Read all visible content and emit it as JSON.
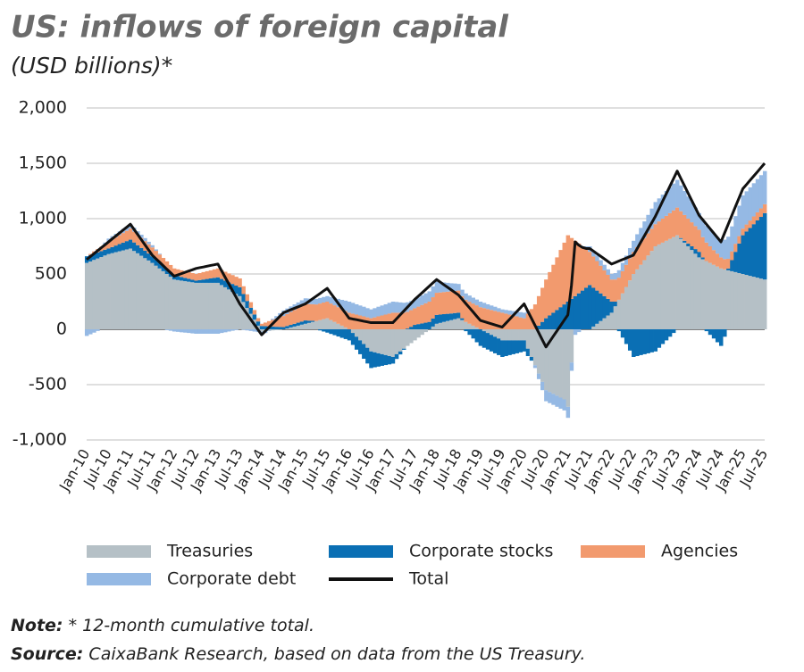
{
  "chart_data": {
    "type": "bar",
    "stacked": true,
    "title": "US: inflows of foreign capital",
    "subtitle": "(USD billions)*",
    "note_label": "Note:",
    "note_text": " * 12-month cumulative total.",
    "source_label": "Source:",
    "source_text": " CaixaBank Research, based on data from the US Treasury.",
    "ylim": [
      -1000,
      2000
    ],
    "yticks": [
      {
        "value": 2000,
        "label": "2,000"
      },
      {
        "value": 1500,
        "label": "1,500"
      },
      {
        "value": 1000,
        "label": "1,000"
      },
      500,
      0,
      -500,
      {
        "value": -1000,
        "label": "-1,000"
      }
    ],
    "grid": true,
    "categories": [
      "Jan-10",
      null,
      null,
      null,
      null,
      null,
      "Jul-10",
      null,
      null,
      null,
      null,
      null,
      "Jan-11",
      null,
      null,
      null,
      null,
      null,
      "Jul-11",
      null,
      null,
      null,
      null,
      null,
      "Jan-12",
      null,
      null,
      null,
      null,
      null,
      "Jul-12",
      null,
      null,
      null,
      null,
      null,
      "Jan-13",
      null,
      null,
      null,
      null,
      null,
      "Jul-13",
      null,
      null,
      null,
      null,
      null,
      "Jan-14",
      null,
      null,
      null,
      null,
      null,
      "Jul-14",
      null,
      null,
      null,
      null,
      null,
      "Jan-15",
      null,
      null,
      null,
      null,
      null,
      "Jul-15",
      null,
      null,
      null,
      null,
      null,
      "Jan-16",
      null,
      null,
      null,
      null,
      null,
      "Jul-16",
      null,
      null,
      null,
      null,
      null,
      "Jan-17",
      null,
      null,
      null,
      null,
      null,
      "Jul-17",
      null,
      null,
      null,
      null,
      null,
      "Jan-18",
      null,
      null,
      null,
      null,
      null,
      "Jul-18",
      null,
      null,
      null,
      null,
      null,
      "Jan-19",
      null,
      null,
      null,
      null,
      null,
      "Jul-19",
      null,
      null,
      null,
      null,
      null,
      "Jan-20",
      null,
      null,
      null,
      null,
      null,
      "Jul-20",
      null,
      null,
      null,
      null,
      null,
      "Jan-21",
      null,
      null,
      null,
      null,
      null,
      "Jul-21",
      null,
      null,
      null,
      null,
      null,
      "Jan-22",
      null,
      null,
      null,
      null,
      null,
      "Jul-22",
      null,
      null,
      null,
      null,
      null,
      "Jan-23",
      null,
      null,
      null,
      null,
      null,
      "Jul-23",
      null,
      null,
      null,
      null,
      null,
      "Jan-24",
      null,
      null,
      null,
      null,
      null,
      "Jul-24",
      null,
      null,
      null,
      null,
      null,
      "Jan-25",
      null,
      null,
      null,
      null,
      null,
      "Jul-25"
    ],
    "series": [
      {
        "name": "Treasuries",
        "color": "#b5c0c6",
        "values": [
          600,
          613,
          627,
          640,
          653,
          667,
          680,
          688,
          697,
          705,
          713,
          722,
          730,
          708,
          687,
          665,
          643,
          622,
          600,
          575,
          550,
          525,
          500,
          475,
          450,
          445,
          440,
          435,
          430,
          425,
          420,
          420,
          420,
          420,
          420,
          420,
          420,
          400,
          380,
          360,
          340,
          320,
          300,
          247,
          193,
          140,
          87,
          33,
          -20,
          -17,
          -13,
          -10,
          -7,
          -3,
          0,
          8,
          17,
          25,
          33,
          42,
          50,
          58,
          67,
          75,
          83,
          92,
          100,
          83,
          67,
          50,
          33,
          17,
          0,
          -33,
          -67,
          -100,
          -133,
          -167,
          -200,
          -208,
          -217,
          -225,
          -233,
          -242,
          -250,
          -225,
          -200,
          -175,
          -150,
          -125,
          -100,
          -75,
          -50,
          -25,
          0,
          25,
          50,
          58,
          67,
          75,
          83,
          92,
          100,
          83,
          67,
          50,
          33,
          17,
          0,
          -17,
          -33,
          -50,
          -67,
          -83,
          -100,
          -100,
          -100,
          -100,
          -100,
          -100,
          -100,
          -175,
          -250,
          -325,
          -400,
          -475,
          -550,
          -567,
          -583,
          -600,
          -617,
          -633,
          -700,
          -300,
          0,
          0,
          0,
          0,
          0,
          25,
          50,
          75,
          100,
          125,
          150,
          208,
          267,
          325,
          383,
          442,
          500,
          542,
          583,
          625,
          667,
          708,
          750,
          767,
          783,
          800,
          817,
          833,
          850,
          817,
          783,
          750,
          717,
          683,
          650,
          633,
          617,
          600,
          583,
          567,
          550,
          542,
          533,
          525,
          517,
          508,
          500,
          492,
          483,
          475,
          467,
          458,
          450
        ]
      },
      {
        "name": "Corporate stocks",
        "color": "#0a6fb4",
        "values": [
          60,
          58,
          57,
          55,
          53,
          52,
          50,
          55,
          60,
          65,
          70,
          75,
          80,
          77,
          73,
          70,
          67,
          63,
          60,
          57,
          53,
          50,
          47,
          43,
          40,
          37,
          33,
          30,
          27,
          23,
          20,
          25,
          30,
          35,
          40,
          45,
          50,
          55,
          60,
          65,
          70,
          75,
          80,
          72,
          63,
          55,
          47,
          38,
          30,
          28,
          27,
          25,
          23,
          22,
          20,
          22,
          23,
          25,
          27,
          28,
          30,
          20,
          10,
          0,
          -10,
          -20,
          -30,
          -42,
          -53,
          -65,
          -77,
          -88,
          -100,
          -108,
          -117,
          -125,
          -133,
          -142,
          -150,
          -135,
          -120,
          -105,
          -90,
          -75,
          -60,
          -43,
          -27,
          -10,
          7,
          23,
          40,
          47,
          53,
          60,
          67,
          73,
          80,
          75,
          70,
          65,
          60,
          55,
          50,
          17,
          -17,
          -50,
          -83,
          -117,
          -150,
          -150,
          -150,
          -150,
          -150,
          -150,
          -150,
          -142,
          -133,
          -125,
          -117,
          -108,
          -100,
          -67,
          -33,
          0,
          33,
          67,
          100,
          125,
          150,
          175,
          200,
          225,
          250,
          275,
          300,
          325,
          350,
          375,
          400,
          350,
          300,
          250,
          200,
          150,
          100,
          42,
          -17,
          -75,
          -133,
          -192,
          -250,
          -242,
          -233,
          -225,
          -217,
          -208,
          -200,
          -167,
          -133,
          -100,
          -67,
          -33,
          0,
          8,
          17,
          25,
          33,
          42,
          50,
          17,
          -17,
          -50,
          -83,
          -117,
          -150,
          -67,
          17,
          100,
          183,
          267,
          350,
          392,
          433,
          475,
          517,
          558,
          600
        ]
      },
      {
        "name": "Agencies",
        "color": "#f29a6e",
        "values": [
          0,
          10,
          20,
          30,
          40,
          50,
          60,
          67,
          73,
          80,
          87,
          93,
          100,
          97,
          93,
          90,
          87,
          83,
          80,
          77,
          73,
          70,
          67,
          63,
          60,
          60,
          60,
          60,
          60,
          60,
          60,
          63,
          67,
          70,
          73,
          77,
          80,
          80,
          80,
          80,
          80,
          80,
          80,
          70,
          60,
          50,
          40,
          30,
          20,
          33,
          47,
          60,
          73,
          87,
          100,
          108,
          117,
          125,
          133,
          142,
          150,
          150,
          150,
          150,
          150,
          150,
          150,
          150,
          150,
          150,
          150,
          150,
          150,
          142,
          133,
          125,
          117,
          108,
          100,
          108,
          117,
          125,
          133,
          142,
          150,
          150,
          150,
          150,
          150,
          150,
          150,
          158,
          167,
          175,
          183,
          192,
          200,
          200,
          200,
          200,
          200,
          200,
          200,
          200,
          200,
          200,
          200,
          200,
          200,
          192,
          183,
          175,
          167,
          158,
          150,
          142,
          133,
          125,
          117,
          108,
          100,
          142,
          183,
          225,
          267,
          308,
          350,
          392,
          433,
          475,
          517,
          558,
          600,
          550,
          500,
          450,
          400,
          350,
          300,
          283,
          267,
          250,
          233,
          217,
          200,
          200,
          200,
          200,
          200,
          200,
          200,
          200,
          200,
          200,
          200,
          200,
          200,
          208,
          217,
          225,
          233,
          242,
          250,
          242,
          233,
          225,
          217,
          208,
          200,
          183,
          167,
          150,
          133,
          117,
          100,
          93,
          87,
          80,
          73,
          67,
          60,
          63,
          67,
          70,
          73,
          77,
          80
        ]
      },
      {
        "name": "Corporate debt",
        "color": "#95b9e4",
        "values": [
          -60,
          -45,
          -30,
          -15,
          0,
          15,
          30,
          32,
          33,
          35,
          37,
          38,
          40,
          37,
          33,
          30,
          27,
          23,
          20,
          13,
          7,
          0,
          -7,
          -13,
          -20,
          -23,
          -27,
          -30,
          -33,
          -37,
          -40,
          -40,
          -40,
          -40,
          -40,
          -40,
          -40,
          -33,
          -27,
          -20,
          -13,
          -7,
          0,
          -5,
          -10,
          -15,
          -20,
          -25,
          -30,
          -17,
          -3,
          10,
          23,
          37,
          50,
          50,
          50,
          50,
          50,
          50,
          50,
          50,
          50,
          50,
          50,
          50,
          50,
          58,
          67,
          75,
          83,
          92,
          100,
          97,
          93,
          90,
          87,
          83,
          80,
          83,
          87,
          90,
          93,
          97,
          100,
          97,
          93,
          90,
          87,
          83,
          80,
          83,
          87,
          90,
          93,
          97,
          100,
          93,
          87,
          80,
          73,
          67,
          60,
          58,
          57,
          55,
          53,
          52,
          50,
          47,
          43,
          40,
          37,
          33,
          30,
          33,
          37,
          40,
          43,
          47,
          50,
          25,
          0,
          -25,
          -50,
          -75,
          -100,
          -100,
          -100,
          -100,
          -100,
          -100,
          -100,
          -75,
          -50,
          -25,
          0,
          25,
          50,
          50,
          50,
          50,
          50,
          50,
          50,
          58,
          67,
          75,
          83,
          92,
          100,
          117,
          133,
          150,
          167,
          183,
          200,
          208,
          217,
          225,
          233,
          242,
          250,
          233,
          217,
          200,
          183,
          167,
          150,
          150,
          150,
          150,
          150,
          150,
          150,
          175,
          200,
          225,
          250,
          275,
          300,
          300,
          300,
          300,
          300,
          300,
          300
        ]
      },
      {
        "name": "Total",
        "color": "#111111",
        "type": "line",
        "values": [
          630,
          657,
          683,
          710,
          737,
          763,
          790,
          817,
          843,
          870,
          897,
          923,
          950,
          903,
          857,
          810,
          763,
          717,
          670,
          638,
          607,
          575,
          543,
          512,
          480,
          492,
          503,
          515,
          527,
          538,
          550,
          557,
          563,
          570,
          577,
          583,
          590,
          530,
          470,
          410,
          350,
          290,
          230,
          183,
          137,
          90,
          43,
          -3,
          -50,
          -17,
          17,
          50,
          83,
          117,
          150,
          163,
          177,
          190,
          203,
          217,
          230,
          253,
          277,
          300,
          323,
          347,
          370,
          325,
          280,
          235,
          190,
          145,
          100,
          93,
          87,
          80,
          73,
          67,
          60,
          60,
          60,
          60,
          60,
          60,
          60,
          95,
          130,
          165,
          200,
          235,
          270,
          300,
          330,
          360,
          390,
          420,
          450,
          427,
          403,
          380,
          357,
          333,
          310,
          272,
          233,
          195,
          157,
          118,
          80,
          70,
          60,
          50,
          40,
          30,
          20,
          55,
          90,
          125,
          160,
          195,
          230,
          165,
          100,
          35,
          -30,
          -95,
          -160,
          -112,
          -63,
          -15,
          33,
          82,
          130,
          400,
          790,
          760,
          740,
          730,
          730,
          707,
          683,
          660,
          637,
          613,
          590,
          603,
          617,
          630,
          643,
          657,
          670,
          728,
          787,
          845,
          903,
          962,
          1020,
          1088,
          1157,
          1225,
          1293,
          1362,
          1430,
          1363,
          1297,
          1230,
          1163,
          1097,
          1030,
          990,
          950,
          910,
          870,
          830,
          790,
          870,
          950,
          1030,
          1110,
          1190,
          1270,
          1308,
          1347,
          1385,
          1423,
          1462,
          1500
        ]
      }
    ]
  }
}
